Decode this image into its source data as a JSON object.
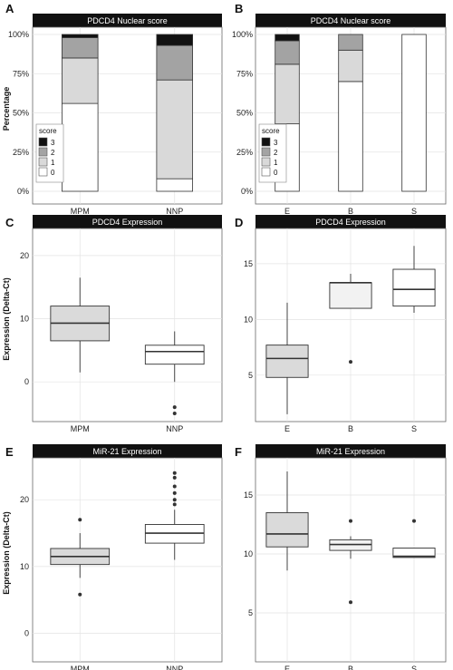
{
  "figure": {
    "colors": {
      "score_0": "#ffffff",
      "score_1": "#d9d9d9",
      "score_2": "#a3a3a3",
      "score_3": "#111111",
      "box_fill_1": "#dadada",
      "box_fill_2": "#f2f2f2",
      "box_fill_3": "#ffffff"
    }
  },
  "chart_data": [
    {
      "id": "A",
      "panel_label": "A",
      "type": "bar",
      "stacked": true,
      "title": "PDCD4 Nuclear score",
      "ylabel": "Percentage",
      "xlabel": "",
      "categories": [
        "MPM",
        "NNP"
      ],
      "yticks": [
        "0%",
        "25%",
        "50%",
        "75%",
        "100%"
      ],
      "ylim": [
        0,
        100
      ],
      "legend": {
        "title": "score",
        "position": "bottom-left",
        "items": [
          "3",
          "2",
          "1",
          "0"
        ]
      },
      "series": [
        {
          "name": "0",
          "values": [
            56,
            8
          ]
        },
        {
          "name": "1",
          "values": [
            29,
            63
          ]
        },
        {
          "name": "2",
          "values": [
            13,
            22
          ]
        },
        {
          "name": "3",
          "values": [
            2,
            7
          ]
        }
      ]
    },
    {
      "id": "B",
      "panel_label": "B",
      "type": "bar",
      "stacked": true,
      "title": "PDCD4 Nuclear score",
      "ylabel": "",
      "xlabel": "",
      "categories": [
        "E",
        "B",
        "S"
      ],
      "yticks": [
        "0%",
        "25%",
        "50%",
        "75%",
        "100%"
      ],
      "ylim": [
        0,
        100
      ],
      "legend": {
        "title": "score",
        "position": "bottom-left",
        "items": [
          "3",
          "2",
          "1",
          "0"
        ]
      },
      "series": [
        {
          "name": "0",
          "values": [
            43,
            70,
            100
          ]
        },
        {
          "name": "1",
          "values": [
            38,
            20,
            0
          ]
        },
        {
          "name": "2",
          "values": [
            15,
            10,
            0
          ]
        },
        {
          "name": "3",
          "values": [
            4,
            0,
            0
          ]
        }
      ]
    },
    {
      "id": "C",
      "panel_label": "C",
      "type": "box",
      "title": "PDCD4 Expression",
      "ylabel": "Expression (Delta-Ct)",
      "xlabel": "",
      "categories": [
        "MPM",
        "NNP"
      ],
      "yticks": [
        "0",
        "10",
        "20"
      ],
      "ytick_values": [
        0,
        10,
        20
      ],
      "ylim": [
        -6,
        24
      ],
      "boxes": [
        {
          "q1": 6.5,
          "median": 9.3,
          "q3": 12.0,
          "whisker_low": 1.5,
          "whisker_high": 16.5,
          "outliers": []
        },
        {
          "q1": 2.8,
          "median": 4.8,
          "q3": 5.8,
          "whisker_low": 0.0,
          "whisker_high": 8.0,
          "outliers": [
            -4.0,
            -5.0
          ]
        }
      ]
    },
    {
      "id": "D",
      "panel_label": "D",
      "type": "box",
      "title": "PDCD4 Expression",
      "ylabel": "",
      "xlabel": "",
      "categories": [
        "E",
        "B",
        "S"
      ],
      "yticks": [
        "5",
        "10",
        "15"
      ],
      "ytick_values": [
        5,
        10,
        15
      ],
      "ylim": [
        1,
        18
      ],
      "boxes": [
        {
          "q1": 4.8,
          "median": 6.5,
          "q3": 7.7,
          "whisker_low": 1.5,
          "whisker_high": 11.5,
          "outliers": []
        },
        {
          "q1": 11.0,
          "median": 13.3,
          "q3": 13.3,
          "whisker_low": 11.0,
          "whisker_high": 14.1,
          "outliers": [
            6.2
          ]
        },
        {
          "q1": 11.2,
          "median": 12.7,
          "q3": 14.5,
          "whisker_low": 10.6,
          "whisker_high": 16.6,
          "outliers": []
        }
      ]
    },
    {
      "id": "E",
      "panel_label": "E",
      "type": "box",
      "title": "MiR-21 Expression",
      "ylabel": "Expression (Delta-Ct)",
      "xlabel": "",
      "categories": [
        "MPM",
        "NNP"
      ],
      "yticks": [
        "0",
        "10",
        "20"
      ],
      "ytick_values": [
        0,
        10,
        20
      ],
      "ylim": [
        -4,
        26
      ],
      "boxes": [
        {
          "q1": 10.3,
          "median": 11.5,
          "q3": 12.7,
          "whisker_low": 8.3,
          "whisker_high": 15.0,
          "outliers": [
            17.0,
            5.8
          ]
        },
        {
          "q1": 13.5,
          "median": 15.0,
          "q3": 16.3,
          "whisker_low": 11.0,
          "whisker_high": 18.5,
          "outliers": [
            19.3,
            20.0,
            21.0,
            22.0,
            23.3,
            24.0
          ]
        }
      ]
    },
    {
      "id": "F",
      "panel_label": "F",
      "type": "box",
      "title": "MiR-21 Expression",
      "ylabel": "",
      "xlabel": "",
      "categories": [
        "E",
        "B",
        "S"
      ],
      "yticks": [
        "5",
        "10",
        "15"
      ],
      "ytick_values": [
        5,
        10,
        15
      ],
      "ylim": [
        1,
        18
      ],
      "boxes": [
        {
          "q1": 10.6,
          "median": 11.7,
          "q3": 13.5,
          "whisker_low": 8.6,
          "whisker_high": 17.0,
          "outliers": []
        },
        {
          "q1": 10.3,
          "median": 10.8,
          "q3": 11.2,
          "whisker_low": 9.6,
          "whisker_high": 11.5,
          "outliers": [
            12.8,
            5.9
          ]
        },
        {
          "q1": 9.7,
          "median": 9.8,
          "q3": 10.5,
          "whisker_low": 9.7,
          "whisker_high": 10.5,
          "outliers": [
            12.8
          ]
        }
      ]
    }
  ]
}
